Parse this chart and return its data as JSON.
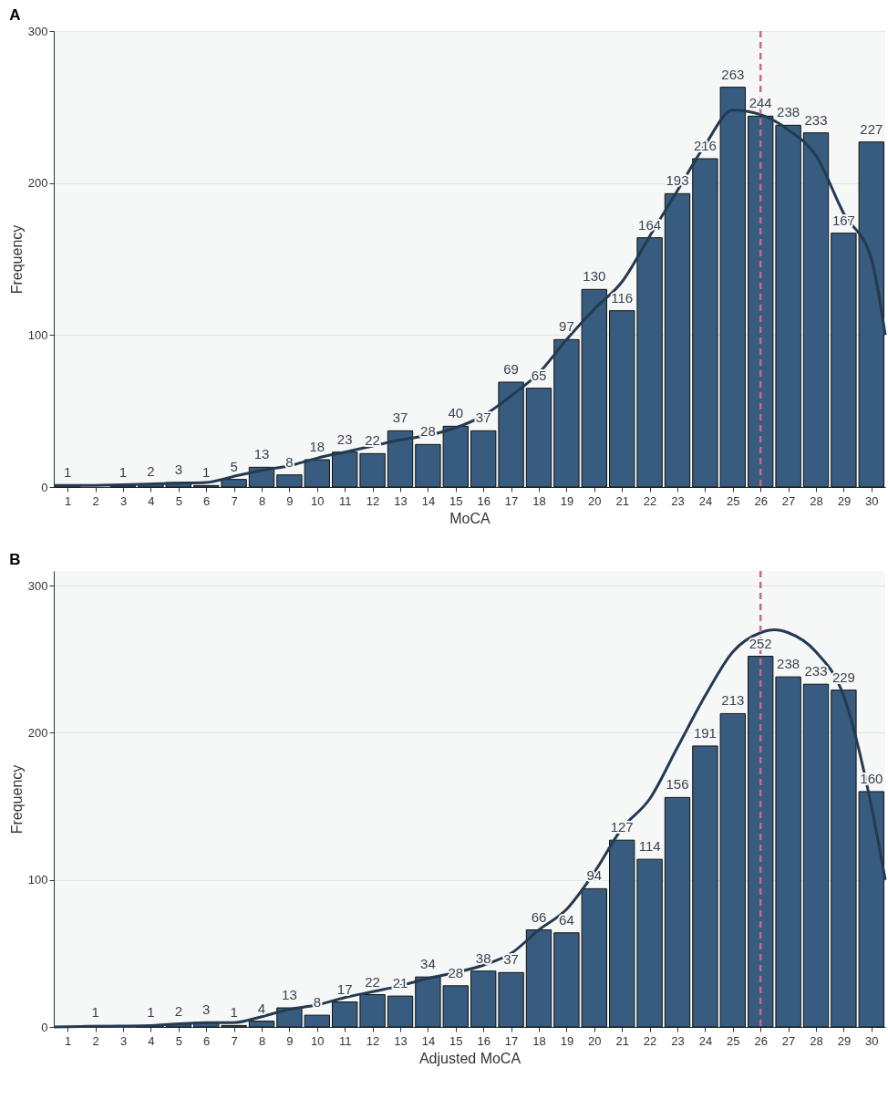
{
  "chart_data": [
    {
      "type": "bar",
      "title": "A",
      "xlabel": "MoCA",
      "ylabel": "Frequency",
      "x": [
        1,
        2,
        3,
        4,
        5,
        6,
        7,
        8,
        9,
        10,
        11,
        12,
        13,
        14,
        15,
        16,
        17,
        18,
        19,
        20,
        21,
        22,
        23,
        24,
        25,
        26,
        27,
        28,
        29,
        30
      ],
      "xlim": [
        0.5,
        30.5
      ],
      "xticks": [
        1,
        2,
        3,
        4,
        5,
        6,
        7,
        8,
        9,
        10,
        11,
        12,
        13,
        14,
        15,
        16,
        17,
        18,
        19,
        20,
        21,
        22,
        23,
        24,
        25,
        26,
        27,
        28,
        29,
        30
      ],
      "ylim": [
        0,
        300
      ],
      "yticks": [
        0,
        100,
        200,
        300
      ],
      "grid": "y",
      "series": [
        {
          "color": "#375c7f",
          "values": [
            1,
            null,
            1,
            2,
            3,
            1,
            5,
            13,
            8,
            18,
            23,
            22,
            37,
            28,
            40,
            37,
            69,
            65,
            97,
            130,
            116,
            164,
            193,
            216,
            263,
            244,
            238,
            233,
            167,
            227
          ],
          "value_labels": [
            "1",
            null,
            "1",
            "2",
            "3",
            "1",
            "5",
            "13",
            "8",
            "18",
            "23",
            "22",
            "37",
            "28",
            "40",
            "37",
            "69",
            "65",
            "97",
            "130",
            "116",
            "164",
            "193",
            "216",
            "263",
            "244",
            "238",
            "233",
            "167",
            "227"
          ]
        },
        {
          "type": "line",
          "color": "#243a50",
          "x": [
            0.5,
            1.5,
            3,
            5,
            6,
            7,
            8,
            9,
            10,
            11,
            12,
            13,
            14,
            15,
            16,
            17,
            18,
            19,
            20,
            21,
            22,
            23,
            24,
            25,
            26,
            27,
            28,
            29,
            30,
            30.5
          ],
          "values": [
            1,
            1,
            1.5,
            2.5,
            3,
            7,
            11,
            14,
            19,
            23,
            27,
            31,
            34,
            39,
            47,
            60,
            75,
            97,
            117,
            135,
            165,
            195,
            225,
            248,
            245,
            235,
            218,
            180,
            150,
            100
          ]
        }
      ],
      "ref_lines": [
        {
          "axis": "x",
          "value": 26,
          "color": "#c7698a",
          "line_style": "dashed"
        }
      ]
    },
    {
      "type": "bar",
      "title": "B",
      "xlabel": "Adjusted MoCA",
      "ylabel": "Frequency",
      "x": [
        1,
        2,
        3,
        4,
        5,
        6,
        7,
        8,
        9,
        10,
        11,
        12,
        13,
        14,
        15,
        16,
        17,
        18,
        19,
        20,
        21,
        22,
        23,
        24,
        25,
        26,
        27,
        28,
        29,
        30
      ],
      "xlim": [
        0.5,
        30.5
      ],
      "xticks": [
        1,
        2,
        3,
        4,
        5,
        6,
        7,
        8,
        9,
        10,
        11,
        12,
        13,
        14,
        15,
        16,
        17,
        18,
        19,
        20,
        21,
        22,
        23,
        24,
        25,
        26,
        27,
        28,
        29,
        30
      ],
      "ylim": [
        0,
        310
      ],
      "yticks": [
        0,
        100,
        200,
        300
      ],
      "grid": "y",
      "series": [
        {
          "color": "#375c7f",
          "values": [
            0,
            1,
            0,
            1,
            2,
            3,
            1,
            4,
            13,
            8,
            17,
            22,
            21,
            34,
            28,
            38,
            37,
            66,
            64,
            94,
            127,
            114,
            156,
            191,
            213,
            252,
            238,
            233,
            229,
            160
          ],
          "value_labels": [
            null,
            "1",
            null,
            "1",
            "2",
            "3",
            "1",
            "4",
            "13",
            "8",
            "17",
            "22",
            "21",
            "34",
            "28",
            "38",
            "37",
            "66",
            "64",
            "94",
            "127",
            "114",
            "156",
            "191",
            "213",
            "252",
            "238",
            "233",
            "229",
            "160"
          ]
        },
        {
          "type": "line",
          "color": "#243a50",
          "x": [
            0.5,
            2,
            4,
            6,
            7,
            8,
            9,
            10,
            11,
            12,
            13,
            14,
            15,
            16,
            17,
            18,
            19,
            20,
            21,
            22,
            23,
            24,
            25,
            26,
            26.5,
            27,
            28,
            29,
            30,
            30.5
          ],
          "values": [
            0,
            0.5,
            1,
            3,
            3,
            7,
            12,
            15,
            20,
            24,
            28,
            33,
            37,
            42,
            50,
            66,
            80,
            105,
            135,
            155,
            190,
            225,
            255,
            268,
            270,
            268,
            255,
            225,
            150,
            100
          ]
        }
      ],
      "ref_lines": [
        {
          "axis": "x",
          "value": 26,
          "color": "#c7698a",
          "line_style": "dashed"
        }
      ]
    }
  ]
}
